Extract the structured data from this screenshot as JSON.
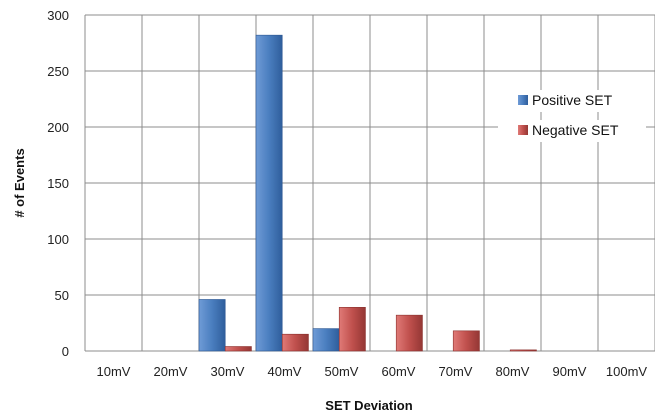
{
  "chart_data": {
    "type": "bar",
    "xlabel": "SET Deviation",
    "ylabel": "# of Events",
    "categories": [
      "10mV",
      "20mV",
      "30mV",
      "40mV",
      "50mV",
      "60mV",
      "70mV",
      "80mV",
      "90mV",
      "100mV"
    ],
    "ylim": [
      0,
      300
    ],
    "yticks": [
      "0",
      "50",
      "100",
      "150",
      "200",
      "250",
      "300"
    ],
    "grid": "vertical and horizontal",
    "legend": {
      "placement": "right"
    },
    "series": [
      {
        "name": "Positive SET",
        "color": "#4a7ebf",
        "values": [
          0,
          0,
          46,
          282,
          20,
          0,
          0,
          0,
          0,
          0
        ]
      },
      {
        "name": "Negative SET",
        "color": "#c0504d",
        "values": [
          0,
          0,
          4,
          15,
          39,
          32,
          18,
          1,
          0,
          0
        ]
      }
    ]
  }
}
